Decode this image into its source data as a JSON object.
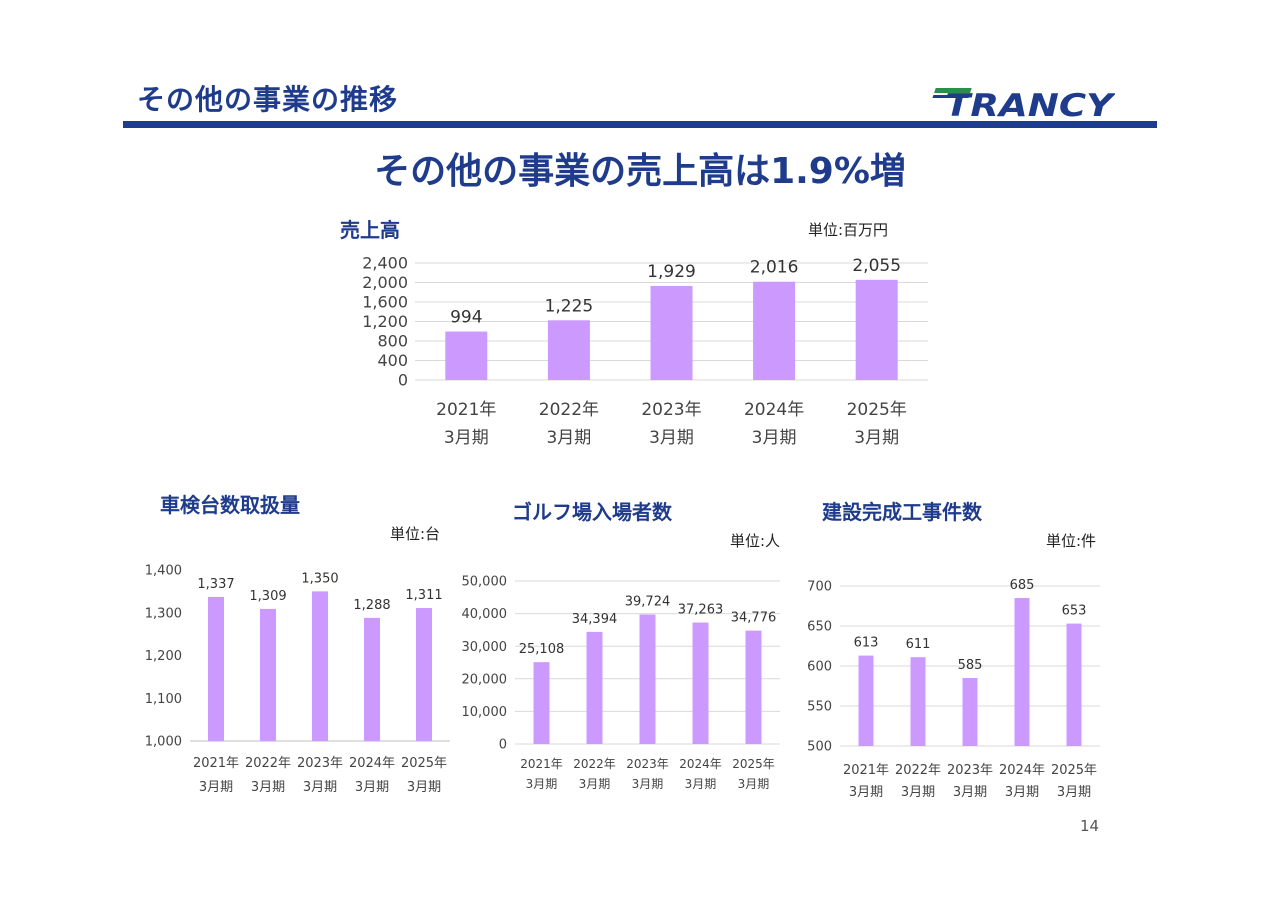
{
  "header": {
    "title": "その他の事業の推移",
    "logo_text": "TRANCY",
    "headline": "その他の事業の売上高は1.9%増",
    "page_number": "14"
  },
  "colors": {
    "brand_navy": "#1f3b8c",
    "bar": "#cc99ff",
    "grid": "#d9d9d9"
  },
  "chart_data": [
    {
      "type": "bar",
      "title": "売上高",
      "unit": "単位:百万円",
      "categories": [
        "2021年 3月期",
        "2022年 3月期",
        "2023年 3月期",
        "2024年 3月期",
        "2025年 3月期"
      ],
      "values": [
        994,
        1225,
        1929,
        2016,
        2055
      ],
      "value_labels": [
        "994",
        "1,225",
        "1,929",
        "2,016",
        "2,055"
      ],
      "ylim": [
        0,
        2400
      ],
      "yticks": [
        "0",
        "400",
        "800",
        "1,200",
        "1,600",
        "2,000",
        "2,400"
      ],
      "grid": true
    },
    {
      "type": "bar",
      "title": "車検台数取扱量",
      "unit": "単位:台",
      "categories": [
        "2021年 3月期",
        "2022年 3月期",
        "2023年 3月期",
        "2024年 3月期",
        "2025年 3月期"
      ],
      "values": [
        1337,
        1309,
        1350,
        1288,
        1311
      ],
      "value_labels": [
        "1,337",
        "1,309",
        "1,350",
        "1,288",
        "1,311"
      ],
      "ylim": [
        1000,
        1400
      ],
      "yticks": [
        "1,000",
        "1,100",
        "1,200",
        "1,300",
        "1,400"
      ],
      "grid": false
    },
    {
      "type": "bar",
      "title": "ゴルフ場入場者数",
      "unit": "単位:人",
      "categories": [
        "2021年 3月期",
        "2022年 3月期",
        "2023年 3月期",
        "2024年 3月期",
        "2025年 3月期"
      ],
      "values": [
        25108,
        34394,
        39724,
        37263,
        34776
      ],
      "value_labels": [
        "25,108",
        "34,394",
        "39,724",
        "37,263",
        "34,776"
      ],
      "ylim": [
        0,
        50000
      ],
      "yticks": [
        "0",
        "10,000",
        "20,000",
        "30,000",
        "40,000",
        "50,000"
      ],
      "grid": true
    },
    {
      "type": "bar",
      "title": "建設完成工事件数",
      "unit": "単位:件",
      "categories": [
        "2021年 3月期",
        "2022年 3月期",
        "2023年 3月期",
        "2024年 3月期",
        "2025年 3月期"
      ],
      "values": [
        613,
        611,
        585,
        685,
        653
      ],
      "value_labels": [
        "613",
        "611",
        "585",
        "685",
        "653"
      ],
      "ylim": [
        500,
        700
      ],
      "yticks": [
        "500",
        "550",
        "600",
        "650",
        "700"
      ],
      "grid": true
    }
  ]
}
